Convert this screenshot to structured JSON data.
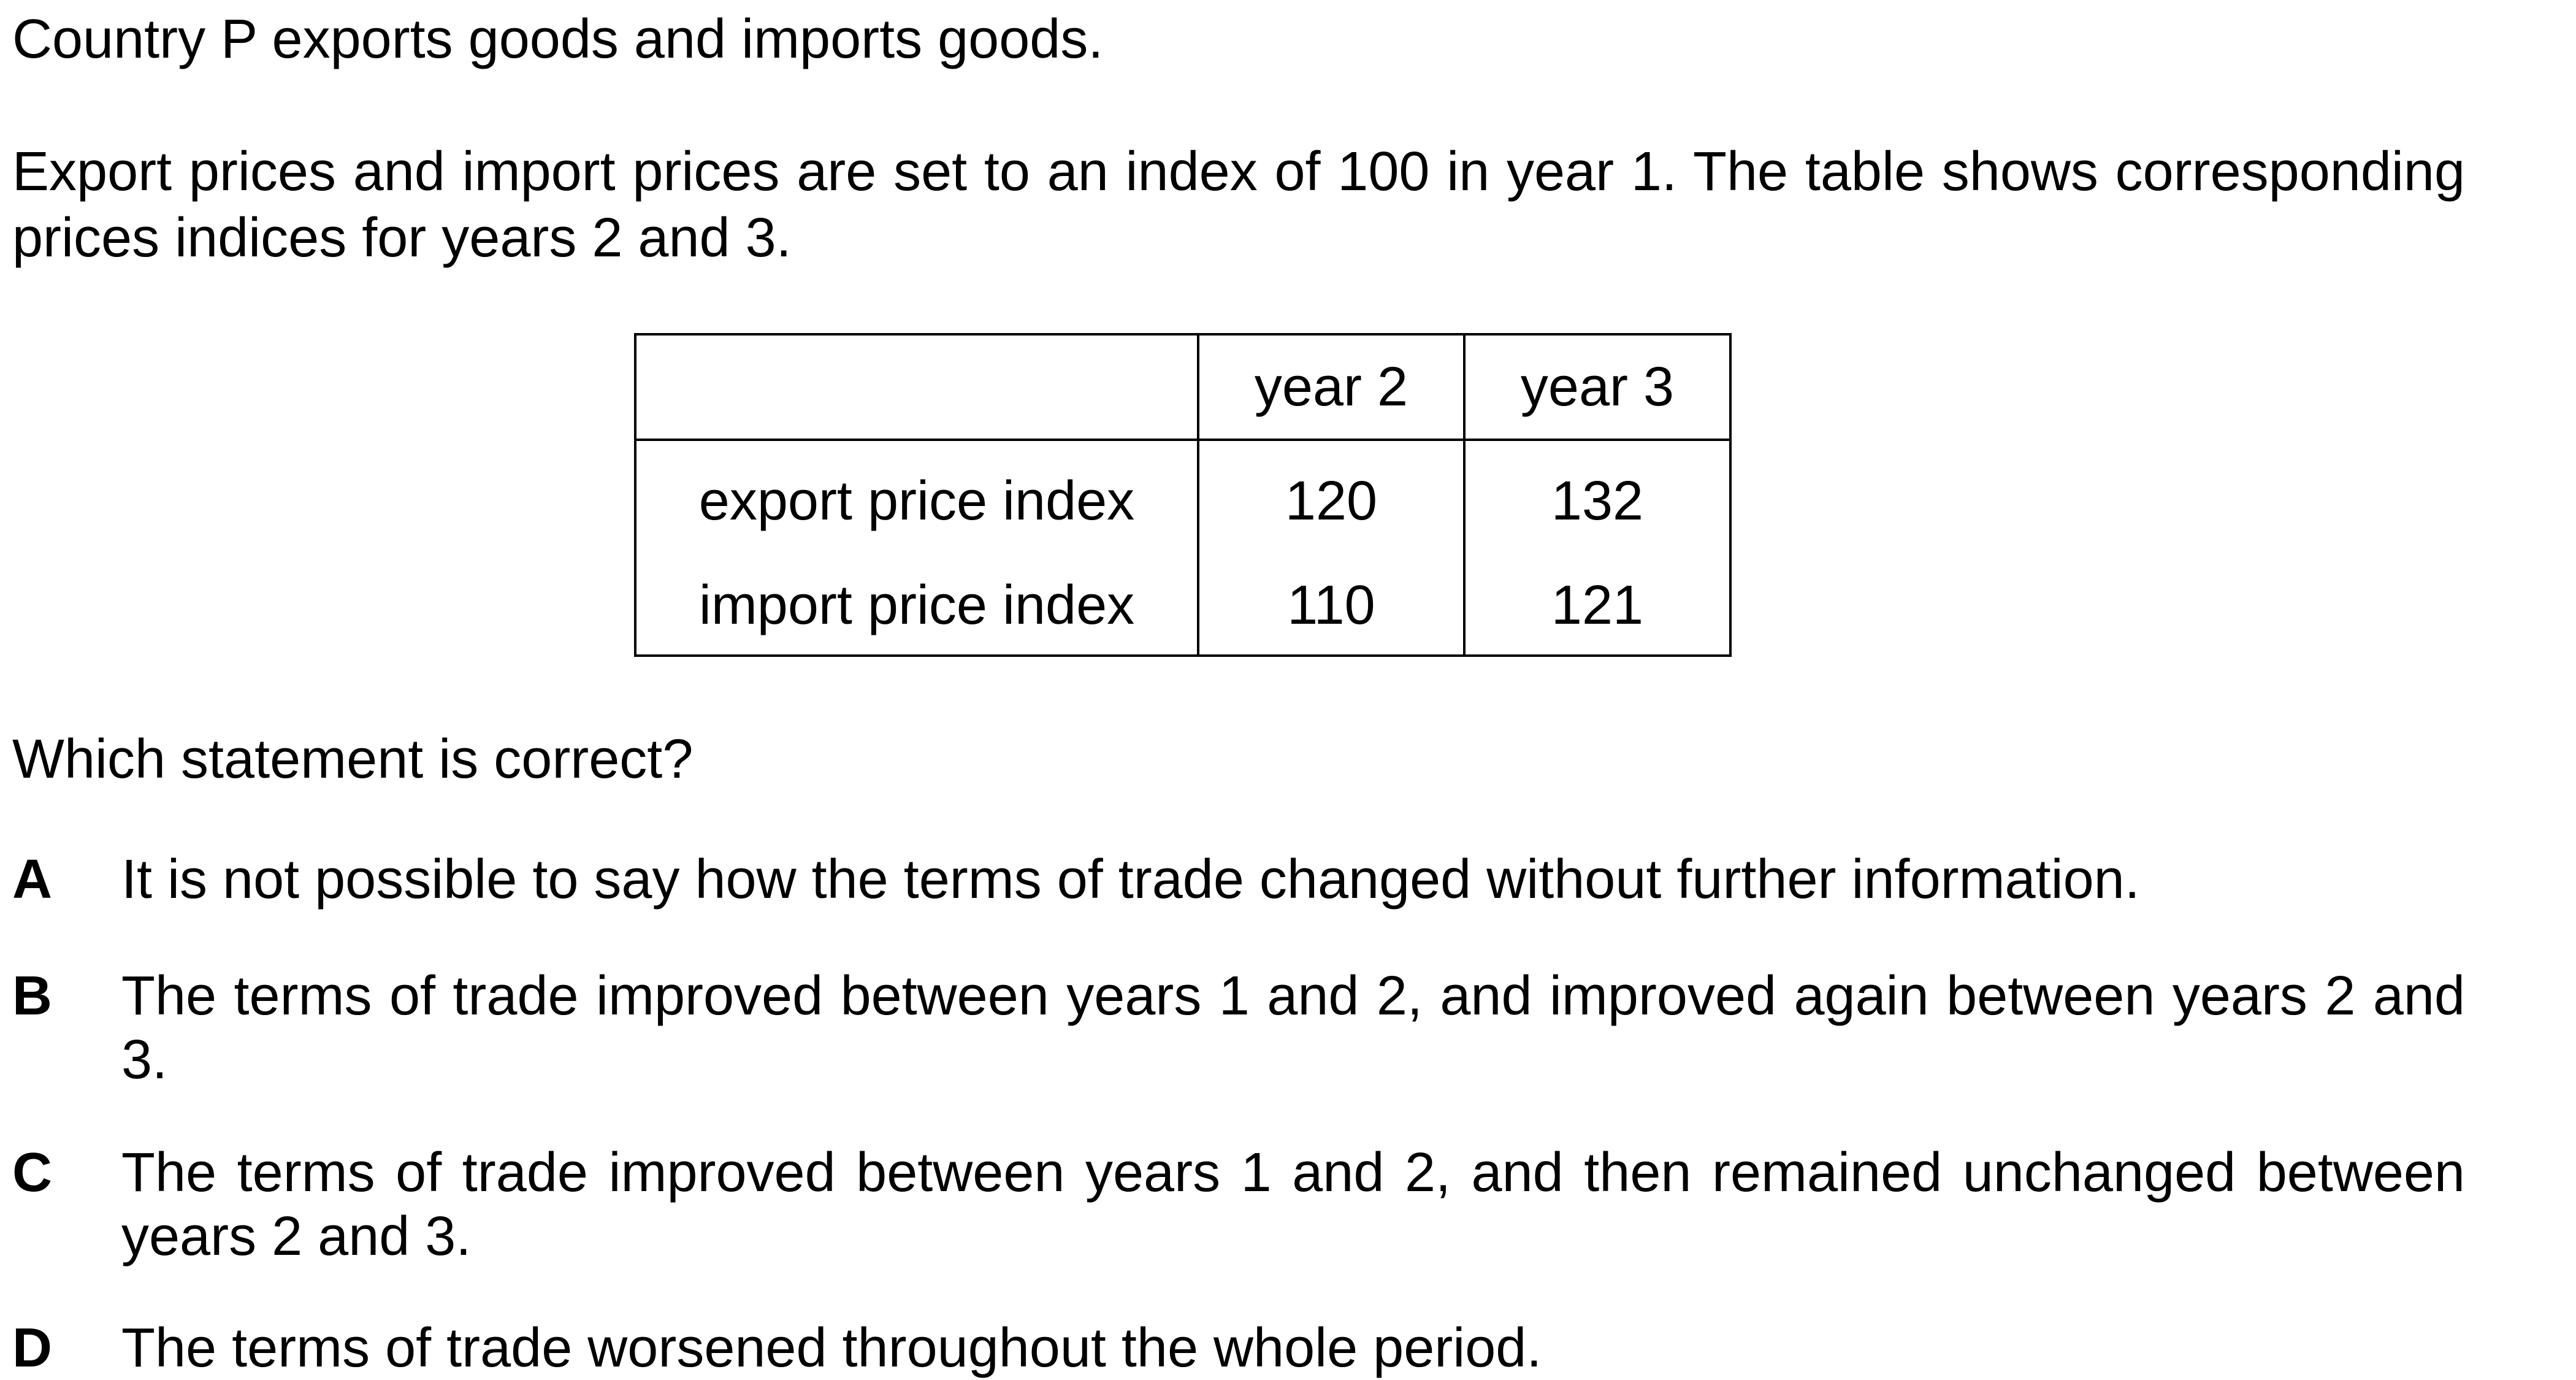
{
  "intro": {
    "line1": "Country P exports goods and imports goods.",
    "line2": "Export prices and import prices are set to an index of 100 in year 1. The table shows corresponding prices indices for years 2 and 3."
  },
  "table": {
    "headers": [
      "",
      "year 2",
      "year 3"
    ],
    "rows": [
      {
        "label": "export price index",
        "values": [
          "120",
          "132"
        ]
      },
      {
        "label": "import price index",
        "values": [
          "110",
          "121"
        ]
      }
    ]
  },
  "question": "Which statement is correct?",
  "options": [
    {
      "letter": "A",
      "text": "It is not possible to say how the terms of trade changed without further information."
    },
    {
      "letter": "B",
      "text": "The terms of trade improved between years 1 and 2, and improved again between years 2 and 3."
    },
    {
      "letter": "C",
      "text": "The terms of trade improved between years 1 and 2, and then remained unchanged between years 2 and 3."
    },
    {
      "letter": "D",
      "text": "The terms of trade worsened throughout the whole period."
    }
  ]
}
